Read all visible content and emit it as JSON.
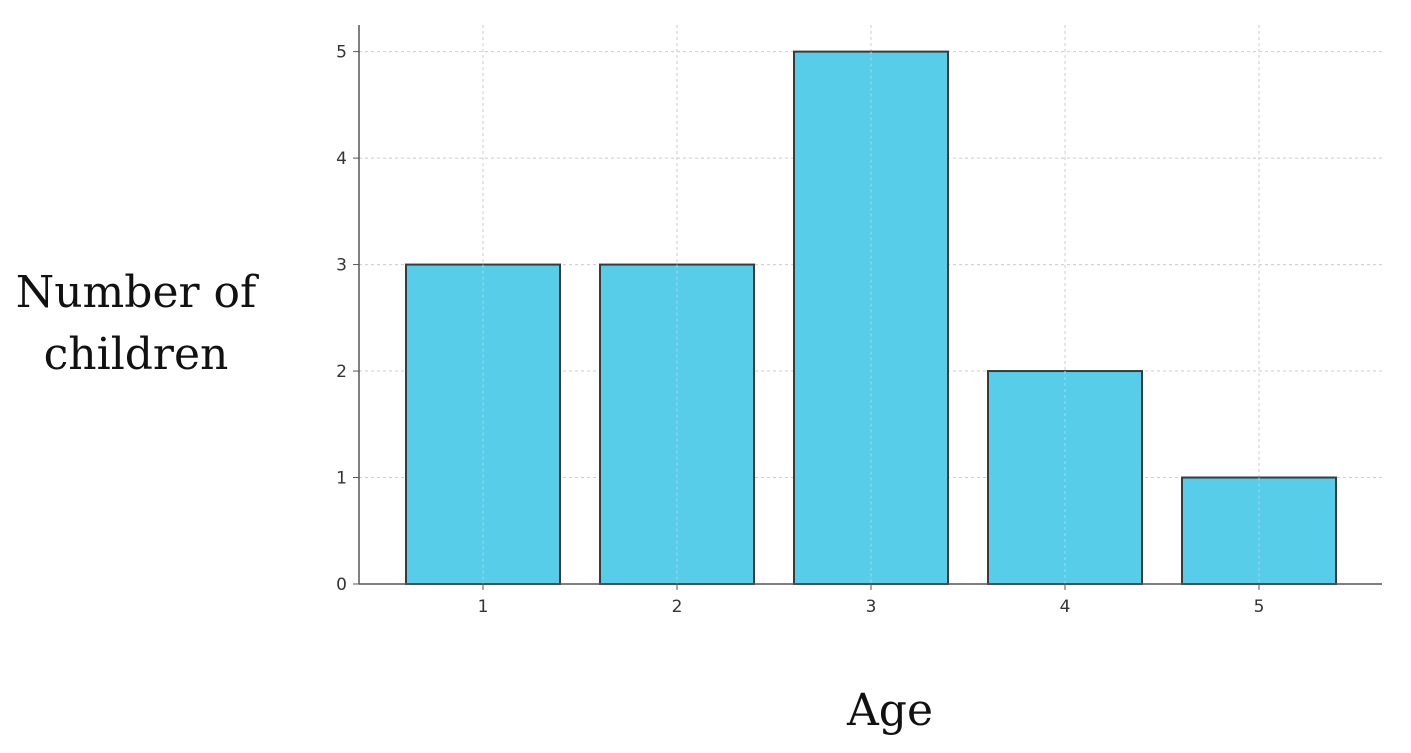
{
  "chart_data": {
    "type": "bar",
    "title": "",
    "xlabel": "Age",
    "ylabel_lines": [
      "Number of",
      "children"
    ],
    "categories": [
      "1",
      "2",
      "3",
      "4",
      "5"
    ],
    "values": [
      3,
      3,
      5,
      2,
      1
    ],
    "yticks": [
      "0",
      "1",
      "2",
      "3",
      "4",
      "5"
    ],
    "ylim": [
      0,
      5.25
    ],
    "grid": true,
    "legend": "none",
    "colors": {
      "bar_fill": "#57cdea",
      "bar_edge": "#3a3a3a",
      "grid": "#cccccc",
      "axis": "#555555"
    }
  }
}
